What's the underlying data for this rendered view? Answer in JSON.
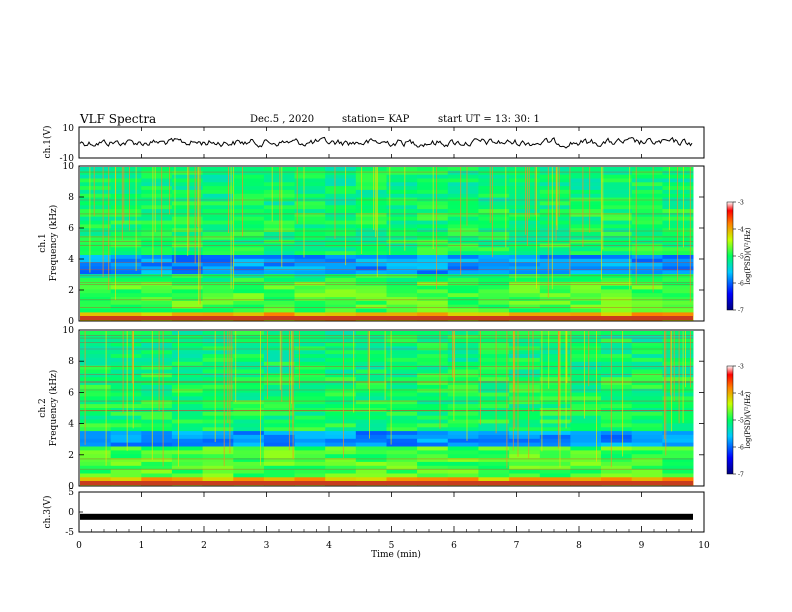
{
  "header": {
    "title": "VLF Spectra",
    "date": "Dec.5 , 2020",
    "station": "station= KAP",
    "start": "start  UT  =   13: 30: 1"
  },
  "chart_data": [
    {
      "type": "line",
      "panel": "ch1-waveform",
      "ylabel": "ch.1(V)",
      "ylim": [
        -10,
        10
      ],
      "yticks": [
        "10",
        "-10"
      ],
      "xlim": [
        0,
        10
      ],
      "series_color": "#000000"
    },
    {
      "type": "heatmap",
      "panel": "ch1-spectrogram",
      "ylabel_top": "ch.1",
      "ylabel": "Frequency  (kHz)",
      "ylim": [
        0,
        10
      ],
      "yticks": [
        "0",
        "2",
        "4",
        "6",
        "8",
        "10"
      ],
      "xlim": [
        0,
        9.8
      ],
      "colorbar": {
        "label": "log(PSD)(V²/Hz)",
        "ticks": [
          "-3",
          "-4",
          "-5",
          "-6",
          "-7"
        ],
        "range": [
          -7,
          -3
        ]
      }
    },
    {
      "type": "heatmap",
      "panel": "ch2-spectrogram",
      "ylabel_top": "ch.2",
      "ylabel": "Frequency  (kHz)",
      "ylim": [
        0,
        10
      ],
      "yticks": [
        "0",
        "2",
        "4",
        "6",
        "8",
        "10"
      ],
      "xlim": [
        0,
        9.8
      ],
      "colorbar": {
        "label": "log(PSD)(V²/Hz)",
        "ticks": [
          "-3",
          "-4",
          "-5",
          "-6",
          "-7"
        ],
        "range": [
          -7,
          -3
        ]
      }
    },
    {
      "type": "line",
      "panel": "ch3-waveform",
      "ylabel": "ch.3(V)",
      "ylim": [
        -5,
        5
      ],
      "yticks": [
        "5",
        "0",
        "-5"
      ],
      "xlabel": "Time  (min)",
      "xlim": [
        0,
        10
      ],
      "xticks": [
        "0",
        "1",
        "2",
        "3",
        "4",
        "5",
        "6",
        "7",
        "8",
        "9",
        "10"
      ],
      "level": -1.2
    }
  ]
}
